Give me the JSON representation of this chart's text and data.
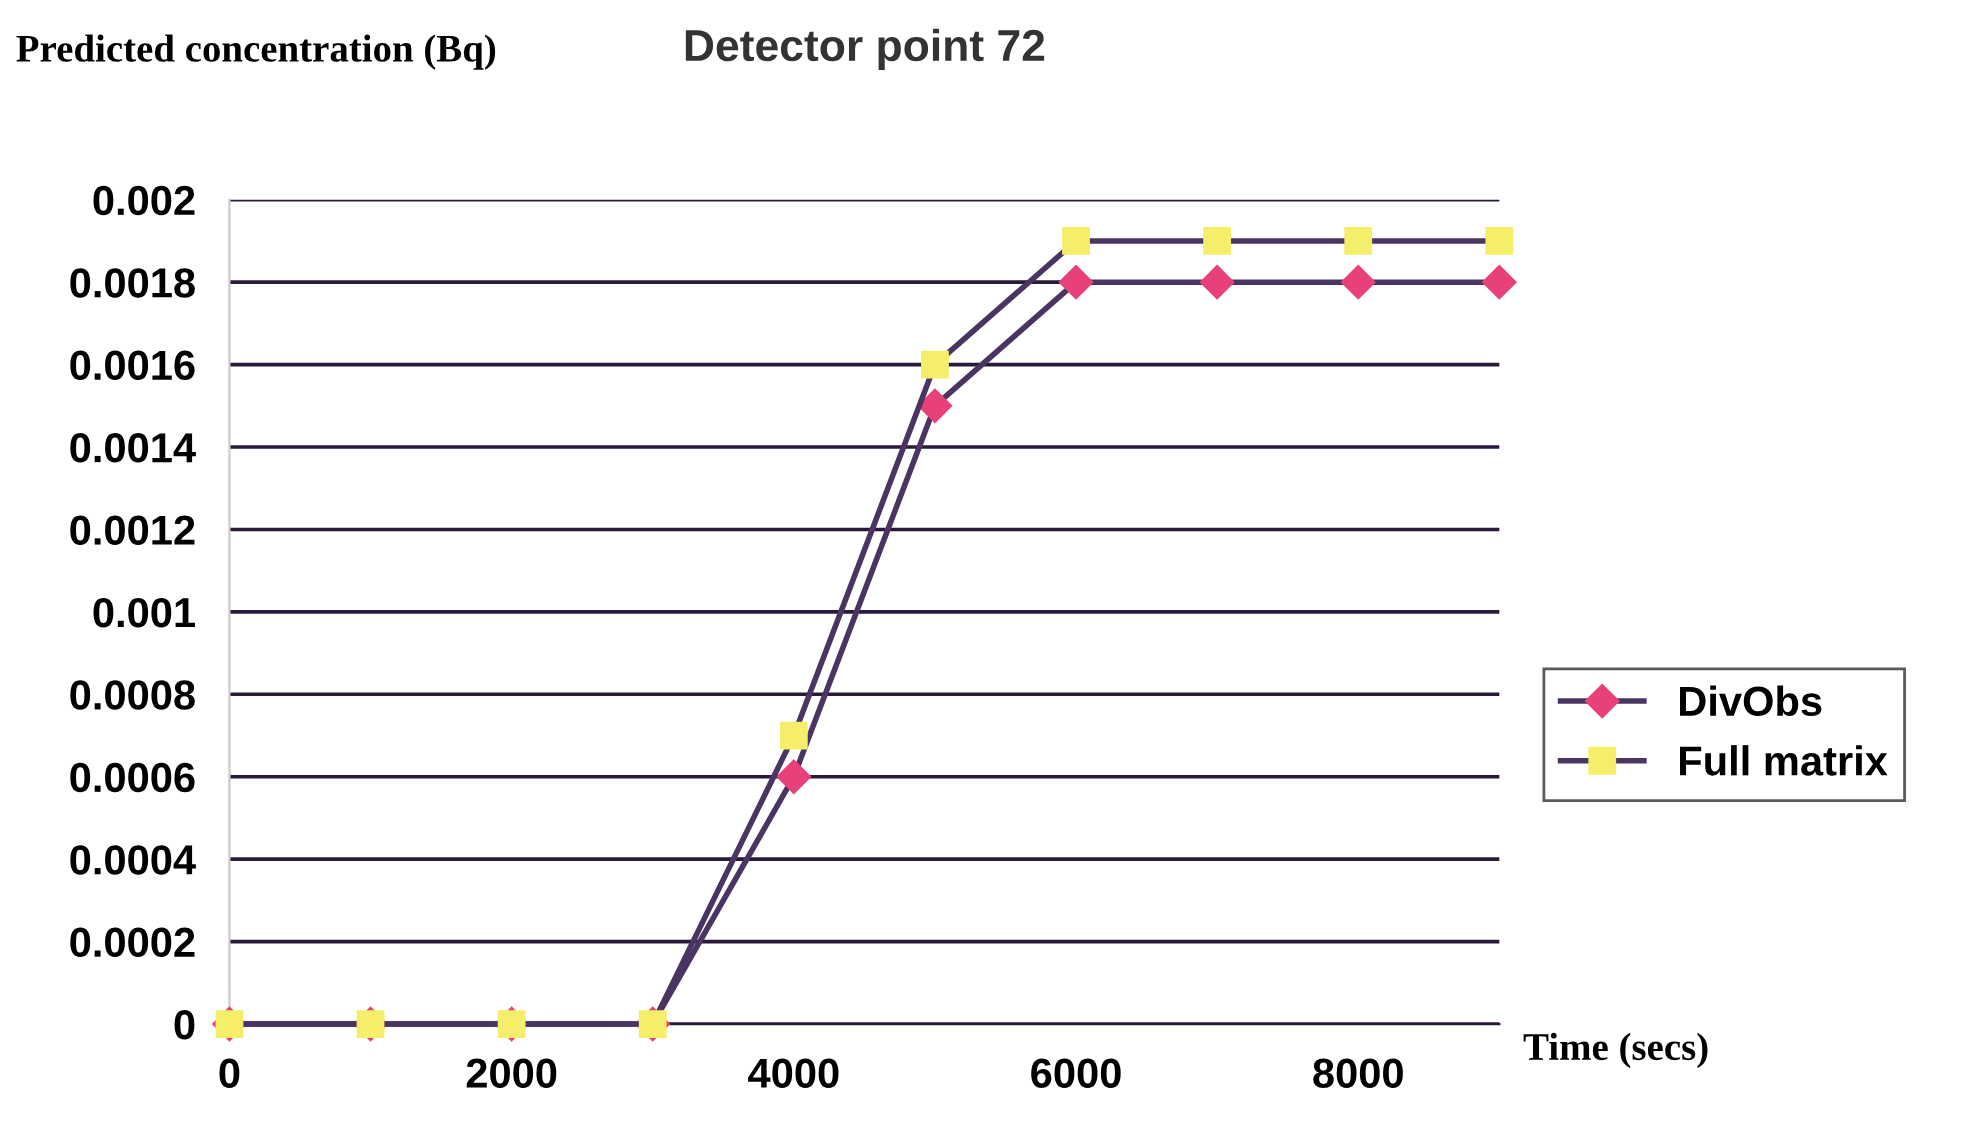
{
  "chart_data": {
    "type": "line",
    "title": "Detector point 72",
    "xlabel": "Time (secs)",
    "ylabel": "Predicted concentration (Bq)",
    "x": [
      0,
      1000,
      2000,
      3000,
      4000,
      5000,
      6000,
      7000,
      8000,
      9000
    ],
    "series": [
      {
        "name": "DivObs",
        "color": "#e8407a",
        "marker": "diamond",
        "values": [
          0,
          0,
          0,
          0,
          0.0006,
          0.0015,
          0.0018,
          0.0018,
          0.0018,
          0.0018
        ]
      },
      {
        "name": "Full matrix",
        "color": "#f5ee6a",
        "marker": "square",
        "values": [
          0,
          0,
          0,
          0,
          0.0007,
          0.0016,
          0.0019,
          0.0019,
          0.0019,
          0.0019
        ]
      }
    ],
    "xlim": [
      0,
      9000
    ],
    "xticks": [
      0,
      2000,
      4000,
      6000,
      8000
    ],
    "ylim": [
      0,
      0.002
    ],
    "yticks": [
      0,
      0.0002,
      0.0004,
      0.0006,
      0.0008,
      0.001,
      0.0012,
      0.0014,
      0.0016,
      0.0018,
      0.002
    ],
    "grid": "y",
    "legend": "right",
    "line_style": "solid"
  }
}
